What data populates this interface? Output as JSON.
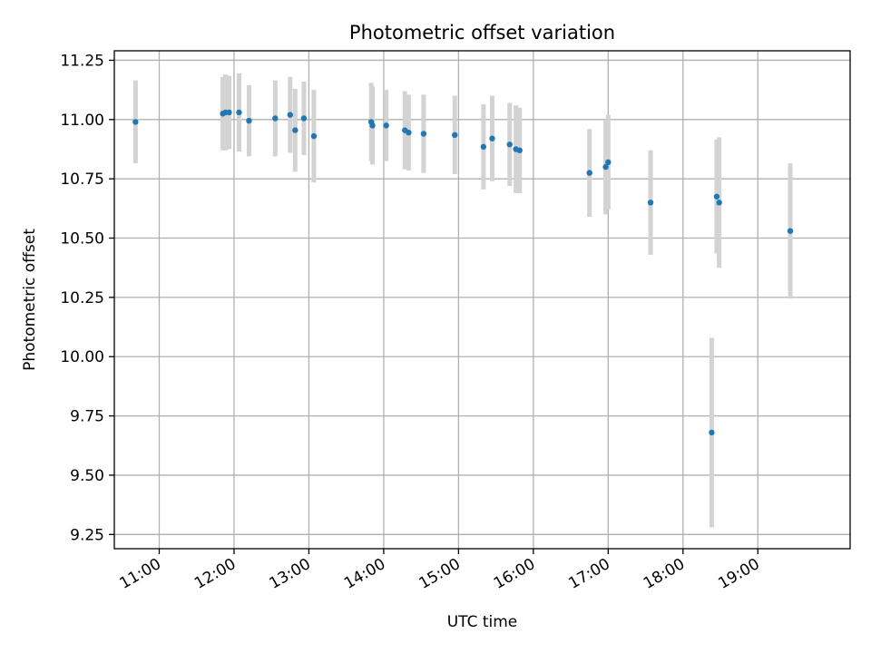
{
  "chart_data": {
    "type": "scatter",
    "title": "Photometric offset variation",
    "xlabel": "UTC time",
    "ylabel": "Photometric offset",
    "x_unit": "hours (UTC)",
    "xlim": [
      "10:24",
      "20:14"
    ],
    "ylim": [
      9.19,
      11.29
    ],
    "x_ticks": [
      {
        "label": "11:00",
        "value": "11:00"
      },
      {
        "label": "12:00",
        "value": "12:00"
      },
      {
        "label": "13:00",
        "value": "13:00"
      },
      {
        "label": "14:00",
        "value": "14:00"
      },
      {
        "label": "15:00",
        "value": "15:00"
      },
      {
        "label": "16:00",
        "value": "16:00"
      },
      {
        "label": "17:00",
        "value": "17:00"
      },
      {
        "label": "18:00",
        "value": "18:00"
      },
      {
        "label": "19:00",
        "value": "19:00"
      }
    ],
    "y_ticks": [
      {
        "label": "9.25",
        "value": 9.25
      },
      {
        "label": "9.50",
        "value": 9.5
      },
      {
        "label": "9.75",
        "value": 9.75
      },
      {
        "label": "10.00",
        "value": 10.0
      },
      {
        "label": "10.25",
        "value": 10.25
      },
      {
        "label": "10.50",
        "value": 10.5
      },
      {
        "label": "10.75",
        "value": 10.75
      },
      {
        "label": "11.00",
        "value": 11.0
      },
      {
        "label": "11.25",
        "value": 11.25
      }
    ],
    "grid": true,
    "point_color": "#1f77b4",
    "errorbar_color": "#d3d3d3",
    "points": [
      {
        "x": "10:41",
        "y": 10.99,
        "yerr": 0.175
      },
      {
        "x": "11:51",
        "y": 11.025,
        "yerr": 0.155
      },
      {
        "x": "11:53",
        "y": 11.03,
        "yerr": 0.16
      },
      {
        "x": "11:56",
        "y": 11.03,
        "yerr": 0.155
      },
      {
        "x": "12:04",
        "y": 11.03,
        "yerr": 0.165
      },
      {
        "x": "12:12",
        "y": 10.995,
        "yerr": 0.15
      },
      {
        "x": "12:33",
        "y": 11.005,
        "yerr": 0.16
      },
      {
        "x": "12:45",
        "y": 11.02,
        "yerr": 0.16
      },
      {
        "x": "12:49",
        "y": 10.955,
        "yerr": 0.175
      },
      {
        "x": "12:56",
        "y": 11.005,
        "yerr": 0.155
      },
      {
        "x": "13:04",
        "y": 10.93,
        "yerr": 0.195
      },
      {
        "x": "13:50",
        "y": 10.99,
        "yerr": 0.165
      },
      {
        "x": "13:51",
        "y": 10.975,
        "yerr": 0.165
      },
      {
        "x": "14:02",
        "y": 10.975,
        "yerr": 0.15
      },
      {
        "x": "14:17",
        "y": 10.955,
        "yerr": 0.165
      },
      {
        "x": "14:20",
        "y": 10.945,
        "yerr": 0.16
      },
      {
        "x": "14:32",
        "y": 10.94,
        "yerr": 0.165
      },
      {
        "x": "14:57",
        "y": 10.935,
        "yerr": 0.165
      },
      {
        "x": "15:20",
        "y": 10.885,
        "yerr": 0.18
      },
      {
        "x": "15:27",
        "y": 10.92,
        "yerr": 0.18
      },
      {
        "x": "15:41",
        "y": 10.895,
        "yerr": 0.175
      },
      {
        "x": "15:46",
        "y": 10.875,
        "yerr": 0.185
      },
      {
        "x": "15:49",
        "y": 10.87,
        "yerr": 0.18
      },
      {
        "x": "16:45",
        "y": 10.775,
        "yerr": 0.185
      },
      {
        "x": "16:58",
        "y": 10.8,
        "yerr": 0.2
      },
      {
        "x": "17:00",
        "y": 10.82,
        "yerr": 0.2
      },
      {
        "x": "17:34",
        "y": 10.65,
        "yerr": 0.22
      },
      {
        "x": "18:23",
        "y": 9.68,
        "yerr": 0.4
      },
      {
        "x": "18:27",
        "y": 10.675,
        "yerr": 0.24
      },
      {
        "x": "18:29",
        "y": 10.65,
        "yerr": 0.275
      },
      {
        "x": "19:26",
        "y": 10.53,
        "yerr": 0.285
      }
    ]
  }
}
